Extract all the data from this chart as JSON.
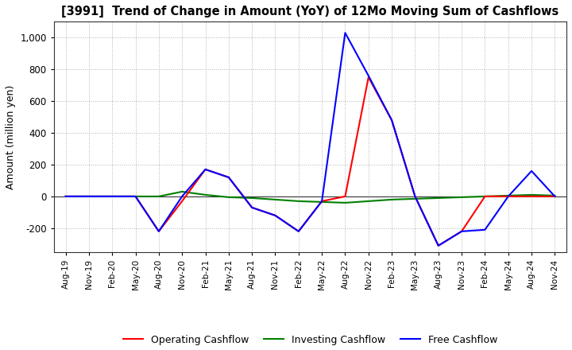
{
  "title": "[3991]  Trend of Change in Amount (YoY) of 12Mo Moving Sum of Cashflows",
  "ylabel": "Amount (million yen)",
  "x_labels": [
    "Aug-19",
    "Nov-19",
    "Feb-20",
    "May-20",
    "Aug-20",
    "Nov-20",
    "Feb-21",
    "May-21",
    "Aug-21",
    "Nov-21",
    "Feb-22",
    "May-22",
    "Aug-22",
    "Nov-22",
    "Feb-23",
    "May-23",
    "Aug-23",
    "Nov-23",
    "Feb-24",
    "May-24",
    "Aug-24",
    "Nov-24"
  ],
  "operating": [
    0,
    0,
    0,
    0,
    -220,
    -30,
    170,
    120,
    -70,
    -120,
    -220,
    -30,
    0,
    750,
    480,
    0,
    -310,
    -220,
    0,
    0,
    0,
    0
  ],
  "investing": [
    0,
    0,
    0,
    0,
    0,
    30,
    10,
    -5,
    -10,
    -20,
    -30,
    -35,
    -40,
    -30,
    -20,
    -15,
    -10,
    -5,
    0,
    5,
    10,
    5
  ],
  "free": [
    0,
    0,
    0,
    0,
    -220,
    0,
    170,
    120,
    -70,
    -120,
    -220,
    -30,
    1030,
    760,
    480,
    0,
    -310,
    -220,
    -210,
    0,
    160,
    0
  ],
  "ylim": [
    -350,
    1100
  ],
  "yticks": [
    -200,
    0,
    200,
    400,
    600,
    800,
    1000
  ],
  "operating_color": "#ff0000",
  "investing_color": "#008000",
  "free_color": "#0000ff",
  "bg_color": "#ffffff",
  "grid_color": "#b0b0b0",
  "legend_labels": [
    "Operating Cashflow",
    "Investing Cashflow",
    "Free Cashflow"
  ]
}
